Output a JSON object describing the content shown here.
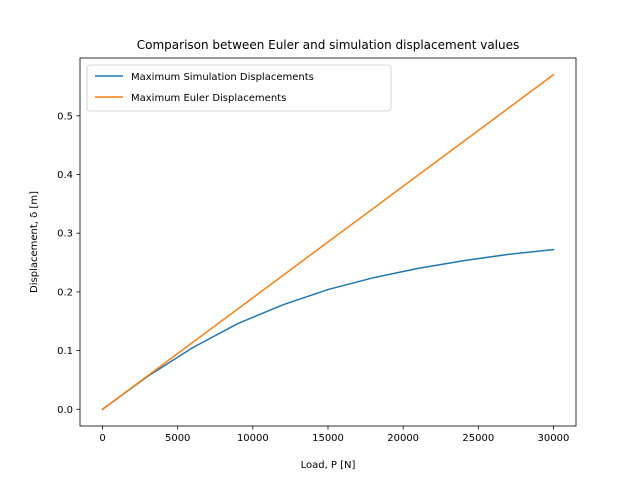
{
  "chart_data": {
    "type": "line",
    "title": "Comparison between Euler and simulation displacement values",
    "xlabel": "Load, P [N]",
    "ylabel": "Displacement, δ [m]",
    "xlim": [
      -1500,
      31500
    ],
    "ylim": [
      -0.0285,
      0.5985
    ],
    "xticks": [
      0,
      5000,
      10000,
      15000,
      20000,
      25000,
      30000
    ],
    "yticks": [
      0.0,
      0.1,
      0.2,
      0.3,
      0.4,
      0.5
    ],
    "ytick_labels": [
      "0.0",
      "0.1",
      "0.2",
      "0.3",
      "0.4",
      "0.5"
    ],
    "grid": false,
    "legend": "top-left",
    "series": [
      {
        "name": "Maximum Simulation Displacements",
        "color": "#1f77b4",
        "x": [
          0,
          3000,
          6000,
          9000,
          12000,
          15000,
          18000,
          21000,
          24000,
          27000,
          30000
        ],
        "y": [
          0.0,
          0.056,
          0.105,
          0.146,
          0.178,
          0.204,
          0.224,
          0.24,
          0.253,
          0.264,
          0.272
        ]
      },
      {
        "name": "Maximum Euler Displacements",
        "color": "#ff7f0e",
        "x": [
          0,
          30000
        ],
        "y": [
          0.0,
          0.57
        ]
      }
    ]
  }
}
